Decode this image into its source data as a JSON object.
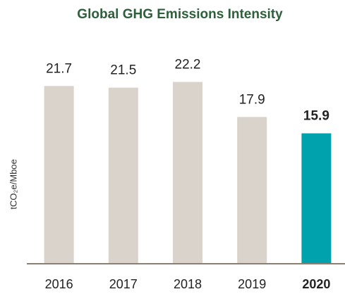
{
  "chart_data": {
    "type": "bar",
    "title": "Global GHG Emissions Intensity",
    "y_label": "tCO₂e/Mboe",
    "categories": [
      "2016",
      "2017",
      "2018",
      "2019",
      "2020"
    ],
    "values": [
      21.7,
      21.5,
      22.2,
      17.9,
      15.9
    ],
    "color": "#d9d3cb",
    "highlight": "2020",
    "highlight_color": "#00a3ad",
    "ylim": [
      0,
      25
    ]
  }
}
